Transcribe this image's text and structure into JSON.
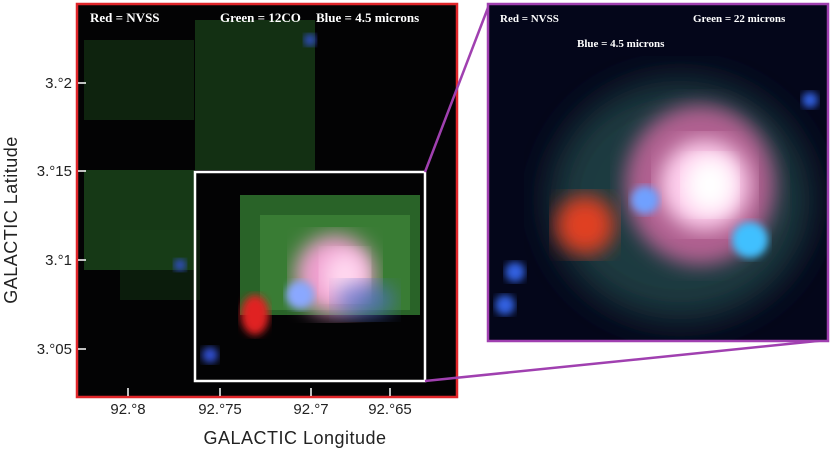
{
  "left_panel": {
    "legend": [
      "Red = NVSS",
      "Green = 12CO",
      "Blue = 4.5 microns"
    ],
    "y_axis": {
      "label": "GALACTIC Latitude",
      "ticks": [
        "3.°2",
        "3.°15",
        "3.°1",
        "3.°05"
      ]
    },
    "x_axis": {
      "label": "GALACTIC Longitude",
      "ticks": [
        "92.°8",
        "92.°75",
        "92.°7",
        "92.°65"
      ]
    }
  },
  "right_panel": {
    "legend": [
      "Red = NVSS",
      "Green = 22 microns",
      "Blue = 4.5 microns"
    ]
  }
}
